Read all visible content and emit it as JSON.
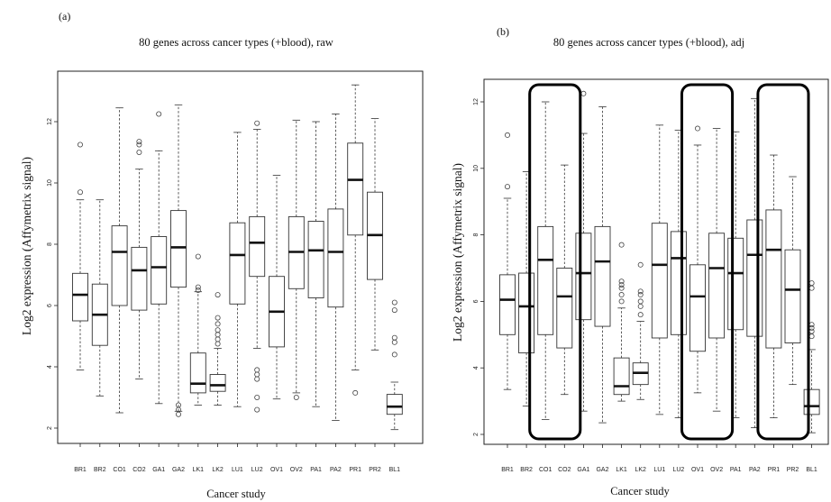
{
  "panels": [
    {
      "label": "(a)",
      "title": "80 genes across cancer types (+blood), raw",
      "ylabel": "Log2 expression (Affymetrix signal)",
      "xlabel": "Cancer study"
    },
    {
      "label": "(b)",
      "title": "80 genes across cancer types (+blood), adj",
      "ylabel": "Log2 expression (Affymetrix signal)",
      "xlabel": "Cancer study"
    }
  ],
  "chart_data": [
    {
      "type": "boxplot",
      "title": "80 genes across cancer types (+blood), raw",
      "xlabel": "Cancer study",
      "ylabel": "Log2 expression (Affymetrix signal)",
      "categories": [
        "BR1",
        "BR2",
        "CO1",
        "CO2",
        "GA1",
        "GA2",
        "LK1",
        "LK2",
        "LU1",
        "LU2",
        "OV1",
        "OV2",
        "PA1",
        "PA2",
        "PR1",
        "PR2",
        "BL1"
      ],
      "yticks": [
        2,
        4,
        6,
        8,
        10,
        12
      ],
      "ylim": [
        1.6,
        13.6
      ],
      "boxes": [
        {
          "min": 3.9,
          "q1": 5.5,
          "median": 6.35,
          "q3": 7.05,
          "max": 9.45,
          "outliers": [
            9.7,
            11.25
          ]
        },
        {
          "min": 3.05,
          "q1": 4.7,
          "median": 5.7,
          "q3": 6.7,
          "max": 9.45,
          "outliers": []
        },
        {
          "min": 2.5,
          "q1": 6.0,
          "median": 7.75,
          "q3": 8.6,
          "max": 12.45,
          "outliers": []
        },
        {
          "min": 3.6,
          "q1": 5.85,
          "median": 7.15,
          "q3": 7.9,
          "max": 10.45,
          "outliers": [
            11.0,
            11.25,
            11.35
          ]
        },
        {
          "min": 2.8,
          "q1": 6.05,
          "median": 7.25,
          "q3": 8.25,
          "max": 11.05,
          "outliers": [
            12.25
          ]
        },
        {
          "min": 2.55,
          "q1": 6.6,
          "median": 7.9,
          "q3": 9.1,
          "max": 12.55,
          "outliers": [
            2.45,
            2.6,
            2.75
          ]
        },
        {
          "min": 2.75,
          "q1": 3.15,
          "median": 3.45,
          "q3": 4.45,
          "max": 6.45,
          "outliers": [
            6.5,
            6.6,
            7.6
          ]
        },
        {
          "min": 2.75,
          "q1": 3.2,
          "median": 3.4,
          "q3": 3.75,
          "max": 4.6,
          "outliers": [
            4.75,
            4.9,
            5.05,
            5.2,
            5.4,
            5.6,
            6.35
          ]
        },
        {
          "min": 2.7,
          "q1": 6.05,
          "median": 7.65,
          "q3": 8.7,
          "max": 11.65,
          "outliers": []
        },
        {
          "min": 4.6,
          "q1": 6.95,
          "median": 8.05,
          "q3": 8.9,
          "max": 11.75,
          "outliers": [
            2.6,
            3.0,
            3.6,
            3.75,
            3.9,
            11.95
          ]
        },
        {
          "min": 2.95,
          "q1": 4.65,
          "median": 5.8,
          "q3": 6.95,
          "max": 10.25,
          "outliers": []
        },
        {
          "min": 3.15,
          "q1": 6.55,
          "median": 7.75,
          "q3": 8.9,
          "max": 12.05,
          "outliers": [
            3.0
          ]
        },
        {
          "min": 2.7,
          "q1": 6.25,
          "median": 7.8,
          "q3": 8.75,
          "max": 12.0,
          "outliers": []
        },
        {
          "min": 2.25,
          "q1": 5.95,
          "median": 7.75,
          "q3": 9.15,
          "max": 12.25,
          "outliers": []
        },
        {
          "min": 3.9,
          "q1": 8.3,
          "median": 10.1,
          "q3": 11.3,
          "max": 13.2,
          "outliers": [
            3.15
          ]
        },
        {
          "min": 4.55,
          "q1": 6.85,
          "median": 8.3,
          "q3": 9.7,
          "max": 12.1,
          "outliers": []
        },
        {
          "min": 1.95,
          "q1": 2.45,
          "median": 2.7,
          "q3": 3.1,
          "max": 3.5,
          "outliers": [
            4.4,
            4.8,
            4.95,
            5.85,
            6.1
          ]
        }
      ],
      "highlight_groups": []
    },
    {
      "type": "boxplot",
      "title": "80 genes across cancer types (+blood), adj",
      "xlabel": "Cancer study",
      "ylabel": "Log2 expression (Affymetrix signal)",
      "categories": [
        "BR1",
        "BR2",
        "CO1",
        "CO2",
        "GA1",
        "GA2",
        "LK1",
        "LK2",
        "LU1",
        "LU2",
        "OV1",
        "OV2",
        "PA1",
        "PA2",
        "PR1",
        "PR2",
        "BL1"
      ],
      "yticks": [
        2,
        4,
        6,
        8,
        10,
        12
      ],
      "ylim": [
        1.6,
        12.6
      ],
      "boxes": [
        {
          "min": 3.35,
          "q1": 5.0,
          "median": 6.05,
          "q3": 6.8,
          "max": 9.1,
          "outliers": [
            9.45,
            11.0
          ]
        },
        {
          "min": 2.85,
          "q1": 4.45,
          "median": 5.85,
          "q3": 6.85,
          "max": 9.9,
          "outliers": []
        },
        {
          "min": 2.45,
          "q1": 5.0,
          "median": 7.25,
          "q3": 8.25,
          "max": 12.0,
          "outliers": []
        },
        {
          "min": 3.2,
          "q1": 4.6,
          "median": 6.15,
          "q3": 7.0,
          "max": 10.1,
          "outliers": []
        },
        {
          "min": 2.7,
          "q1": 5.45,
          "median": 6.85,
          "q3": 8.05,
          "max": 11.05,
          "outliers": [
            12.25
          ]
        },
        {
          "min": 2.35,
          "q1": 5.25,
          "median": 7.2,
          "q3": 8.25,
          "max": 11.85,
          "outliers": []
        },
        {
          "min": 3.0,
          "q1": 3.2,
          "median": 3.45,
          "q3": 4.3,
          "max": 5.8,
          "outliers": [
            6.0,
            6.2,
            6.4,
            6.5,
            6.6,
            7.7
          ]
        },
        {
          "min": 3.05,
          "q1": 3.5,
          "median": 3.85,
          "q3": 4.15,
          "max": 5.4,
          "outliers": [
            5.6,
            5.85,
            6.0,
            6.2,
            6.3,
            7.1
          ]
        },
        {
          "min": 2.6,
          "q1": 4.9,
          "median": 7.1,
          "q3": 8.35,
          "max": 11.3,
          "outliers": []
        },
        {
          "min": 2.5,
          "q1": 5.0,
          "median": 7.3,
          "q3": 8.1,
          "max": 11.15,
          "outliers": []
        },
        {
          "min": 3.25,
          "q1": 4.5,
          "median": 6.15,
          "q3": 7.1,
          "max": 10.7,
          "outliers": [
            11.2
          ]
        },
        {
          "min": 2.7,
          "q1": 4.9,
          "median": 7.0,
          "q3": 8.05,
          "max": 11.2,
          "outliers": []
        },
        {
          "min": 2.5,
          "q1": 5.15,
          "median": 6.85,
          "q3": 7.9,
          "max": 11.1,
          "outliers": []
        },
        {
          "min": 2.2,
          "q1": 4.95,
          "median": 7.4,
          "q3": 8.45,
          "max": 12.1,
          "outliers": []
        },
        {
          "min": 2.5,
          "q1": 4.6,
          "median": 7.55,
          "q3": 8.75,
          "max": 10.4,
          "outliers": []
        },
        {
          "min": 3.5,
          "q1": 4.75,
          "median": 6.35,
          "q3": 7.55,
          "max": 9.75,
          "outliers": []
        },
        {
          "min": 2.05,
          "q1": 2.6,
          "median": 2.85,
          "q3": 3.35,
          "max": 4.55,
          "outliers": [
            4.95,
            5.1,
            5.2,
            5.3,
            6.4,
            6.55
          ]
        }
      ],
      "highlight_groups": [
        [
          "CO1",
          "CO2"
        ],
        [
          "OV1",
          "OV2"
        ],
        [
          "PR1",
          "PR2"
        ]
      ]
    }
  ]
}
